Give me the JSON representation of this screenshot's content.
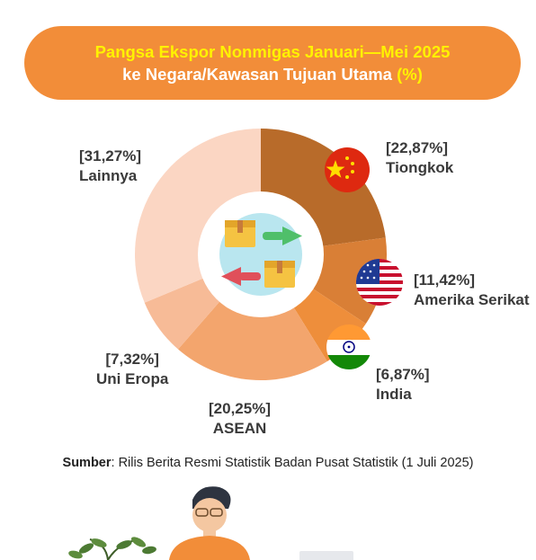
{
  "header": {
    "line1": "Pangsa Ekspor Nonmigas Januari—Mei 2025",
    "line2": "ke Negara/Kawasan Tujuan Utama",
    "unit": "(%)"
  },
  "chart_data": {
    "type": "pie",
    "title": "Pangsa Ekspor Nonmigas Januari—Mei 2025 ke Negara/Kawasan Tujuan Utama (%)",
    "categories": [
      "Tiongkok",
      "Amerika Serikat",
      "India",
      "ASEAN",
      "Uni Eropa",
      "Lainnya"
    ],
    "values": [
      22.87,
      11.42,
      6.87,
      20.25,
      7.32,
      31.27
    ],
    "value_labels": [
      "[22,87%]",
      "[11,42%]",
      "[6,87%]",
      "[20,25%]",
      "[7,32%]",
      "[31,27%]"
    ],
    "colors": [
      "#b86b2a",
      "#d97f36",
      "#ee8e3b",
      "#f3a56d",
      "#f7bb97",
      "#fbd6c3"
    ],
    "flags": [
      "china-flag",
      "usa-flag",
      "india-flag",
      null,
      null,
      null
    ],
    "donut": true
  },
  "center_icon": "trade-boxes-arrows-icon",
  "source": {
    "label": "Sumber",
    "text": ": Rilis Berita Resmi Statistik Badan Pusat Statistik (1 Juli 2025)"
  }
}
